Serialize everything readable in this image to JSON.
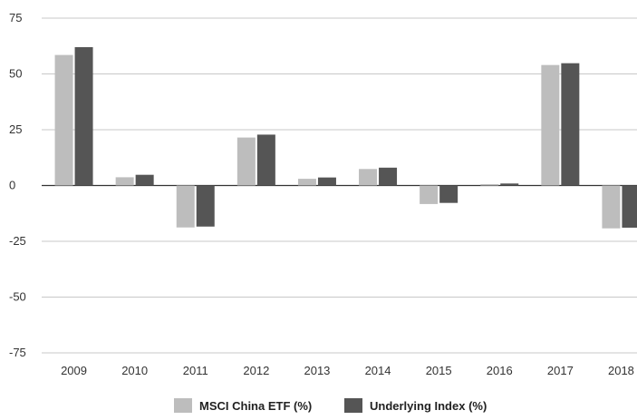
{
  "chart_data": {
    "type": "bar",
    "categories": [
      "2009",
      "2010",
      "2011",
      "2012",
      "2013",
      "2014",
      "2015",
      "2016",
      "2017",
      "2018"
    ],
    "series": [
      {
        "name": "MSCI China ETF (%)",
        "values": [
          58.5,
          3.7,
          -18.8,
          21.5,
          3.0,
          7.4,
          -8.3,
          0.6,
          54.0,
          -19.2
        ],
        "color": "#bdbdbd"
      },
      {
        "name": "Underlying Index (%)",
        "values": [
          62.0,
          4.8,
          -18.4,
          22.8,
          3.6,
          8.0,
          -7.8,
          0.9,
          54.8,
          -18.9
        ],
        "color": "#555555"
      }
    ],
    "ylim": [
      -75,
      75
    ],
    "yticks": [
      75,
      50,
      25,
      0,
      -25,
      -50,
      -75
    ],
    "ytick_labels": [
      "75",
      "50",
      "25",
      "0",
      "-25",
      "-50",
      "-75"
    ],
    "grid": true,
    "grid_color": "#c8c8c8",
    "zero_line_color": "#333333",
    "legend_position": "bottom-center",
    "title": "",
    "xlabel": "",
    "ylabel": ""
  }
}
